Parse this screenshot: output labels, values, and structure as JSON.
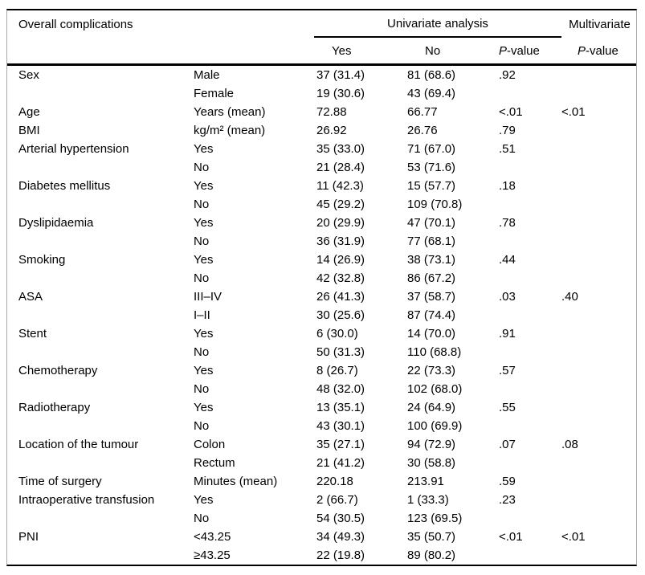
{
  "table": {
    "title": "Overall complications",
    "group_header": "Univariate analysis",
    "multivariate_header": "Multivariate",
    "col_yes": "Yes",
    "col_no": "No",
    "p_italic": "P",
    "p_rest": "-value",
    "rows": [
      {
        "label": "Sex",
        "sub": "Male",
        "yes": "37 (31.4)",
        "no": "81 (68.6)",
        "p_uni": ".92",
        "p_multi": ""
      },
      {
        "label": "",
        "sub": "Female",
        "yes": "19 (30.6)",
        "no": "43 (69.4)",
        "p_uni": "",
        "p_multi": ""
      },
      {
        "label": "Age",
        "sub": "Years (mean)",
        "yes": "72.88",
        "no": "66.77",
        "p_uni": "<.01",
        "p_multi": "<.01"
      },
      {
        "label": "BMI",
        "sub": "kg/m² (mean)",
        "yes": "26.92",
        "no": "26.76",
        "p_uni": ".79",
        "p_multi": ""
      },
      {
        "label": "Arterial hypertension",
        "sub": "Yes",
        "yes": "35 (33.0)",
        "no": "71 (67.0)",
        "p_uni": ".51",
        "p_multi": ""
      },
      {
        "label": "",
        "sub": "No",
        "yes": "21 (28.4)",
        "no": "53 (71.6)",
        "p_uni": "",
        "p_multi": ""
      },
      {
        "label": "Diabetes mellitus",
        "sub": "Yes",
        "yes": "11 (42.3)",
        "no": "15 (57.7)",
        "p_uni": ".18",
        "p_multi": ""
      },
      {
        "label": "",
        "sub": "No",
        "yes": "45 (29.2)",
        "no": "109 (70.8)",
        "p_uni": "",
        "p_multi": ""
      },
      {
        "label": "Dyslipidaemia",
        "sub": "Yes",
        "yes": "20 (29.9)",
        "no": "47 (70.1)",
        "p_uni": ".78",
        "p_multi": ""
      },
      {
        "label": "",
        "sub": "No",
        "yes": "36 (31.9)",
        "no": "77 (68.1)",
        "p_uni": "",
        "p_multi": ""
      },
      {
        "label": "Smoking",
        "sub": "Yes",
        "yes": "14 (26.9)",
        "no": "38 (73.1)",
        "p_uni": ".44",
        "p_multi": ""
      },
      {
        "label": "",
        "sub": "No",
        "yes": "42 (32.8)",
        "no": "86 (67.2)",
        "p_uni": "",
        "p_multi": ""
      },
      {
        "label": "ASA",
        "sub": "III–IV",
        "yes": "26 (41.3)",
        "no": "37 (58.7)",
        "p_uni": ".03",
        "p_multi": ".40"
      },
      {
        "label": "",
        "sub": "I–II",
        "yes": "30 (25.6)",
        "no": "87 (74.4)",
        "p_uni": "",
        "p_multi": ""
      },
      {
        "label": "Stent",
        "sub": "Yes",
        "yes": "6 (30.0)",
        "no": "14 (70.0)",
        "p_uni": ".91",
        "p_multi": ""
      },
      {
        "label": "",
        "sub": "No",
        "yes": "50 (31.3)",
        "no": "110 (68.8)",
        "p_uni": "",
        "p_multi": ""
      },
      {
        "label": "Chemotherapy",
        "sub": "Yes",
        "yes": "8 (26.7)",
        "no": "22 (73.3)",
        "p_uni": ".57",
        "p_multi": ""
      },
      {
        "label": "",
        "sub": "No",
        "yes": "48 (32.0)",
        "no": "102 (68.0)",
        "p_uni": "",
        "p_multi": ""
      },
      {
        "label": "Radiotherapy",
        "sub": "Yes",
        "yes": "13 (35.1)",
        "no": "24 (64.9)",
        "p_uni": ".55",
        "p_multi": ""
      },
      {
        "label": "",
        "sub": "No",
        "yes": "43 (30.1)",
        "no": "100 (69.9)",
        "p_uni": "",
        "p_multi": ""
      },
      {
        "label": "Location of the tumour",
        "sub": "Colon",
        "yes": "35 (27.1)",
        "no": "94 (72.9)",
        "p_uni": ".07",
        "p_multi": ".08"
      },
      {
        "label": "",
        "sub": "Rectum",
        "yes": "21 (41.2)",
        "no": "30 (58.8)",
        "p_uni": "",
        "p_multi": ""
      },
      {
        "label": "Time of surgery",
        "sub": "Minutes (mean)",
        "yes": "220.18",
        "no": "213.91",
        "p_uni": ".59",
        "p_multi": ""
      },
      {
        "label": "Intraoperative transfusion",
        "sub": "Yes",
        "yes": "2 (66.7)",
        "no": "1 (33.3)",
        "p_uni": ".23",
        "p_multi": ""
      },
      {
        "label": "",
        "sub": "No",
        "yes": "54 (30.5)",
        "no": "123 (69.5)",
        "p_uni": "",
        "p_multi": ""
      },
      {
        "label": "PNI",
        "sub": "<43.25",
        "yes": "34 (49.3)",
        "no": "35 (50.7)",
        "p_uni": "<.01",
        "p_multi": "<.01"
      },
      {
        "label": "",
        "sub": "≥43.25",
        "yes": "22 (19.8)",
        "no": "89 (80.2)",
        "p_uni": "",
        "p_multi": ""
      }
    ]
  }
}
